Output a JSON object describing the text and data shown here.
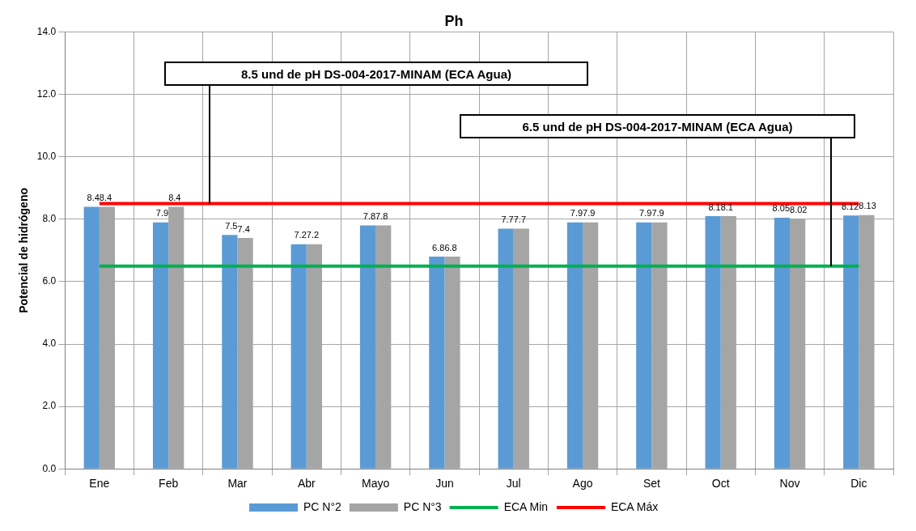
{
  "chart_data": {
    "type": "bar",
    "title": "Ph",
    "ylabel": "Potencial de hidrógeno",
    "categories": [
      "Ene",
      "Feb",
      "Mar",
      "Abr",
      "Mayo",
      "Jun",
      "Jul",
      "Ago",
      "Set",
      "Oct",
      "Nov",
      "Dic"
    ],
    "series": [
      {
        "name": "PC N°2",
        "color": "#5b9bd5",
        "values": [
          8.4,
          7.9,
          7.5,
          7.2,
          7.8,
          6.8,
          7.7,
          7.9,
          7.9,
          8.1,
          8.05,
          8.12
        ],
        "value_labels": [
          "8.4",
          "7.9",
          "7.5",
          "7.2",
          "7.8",
          "6.8",
          "7.7",
          "7.9",
          "7.9",
          "8.1",
          "8.05",
          "8.12"
        ]
      },
      {
        "name": "PC N°3",
        "color": "#a5a5a5",
        "values": [
          8.4,
          8.4,
          7.4,
          7.2,
          7.8,
          6.8,
          7.7,
          7.9,
          7.9,
          8.1,
          8.02,
          8.13
        ],
        "value_labels": [
          "8.4",
          "8.4",
          "7.4",
          "7.2",
          "7.8",
          "6.8",
          "7.7",
          "7.9",
          "7.9",
          "8.1",
          "8.02",
          "8.13"
        ]
      },
      {
        "name": "ECA Min",
        "type": "line",
        "color": "#00b050",
        "values": [
          6.5,
          6.5,
          6.5,
          6.5,
          6.5,
          6.5,
          6.5,
          6.5,
          6.5,
          6.5,
          6.5,
          6.5
        ]
      },
      {
        "name": "ECA Máx",
        "type": "line",
        "color": "#ff0000",
        "values": [
          8.5,
          8.5,
          8.5,
          8.5,
          8.5,
          8.5,
          8.5,
          8.5,
          8.5,
          8.5,
          8.5,
          8.5
        ]
      }
    ],
    "ylim": [
      0,
      14
    ],
    "yticks": [
      {
        "value": 0,
        "label": "0.0"
      },
      {
        "value": 2,
        "label": "2.0"
      },
      {
        "value": 4,
        "label": "4.0"
      },
      {
        "value": 6,
        "label": "6.0"
      },
      {
        "value": 8,
        "label": "8.0"
      },
      {
        "value": 10,
        "label": "10.0"
      },
      {
        "value": 12,
        "label": "12.0"
      },
      {
        "value": 14,
        "label": "14.0"
      }
    ],
    "grid": true,
    "legend": "bottom",
    "annotations": [
      "8.5 und de pH DS-004-2017-MINAM (ECA Agua)",
      "6.5 und de pH DS-004-2017-MINAM (ECA Agua)"
    ]
  }
}
